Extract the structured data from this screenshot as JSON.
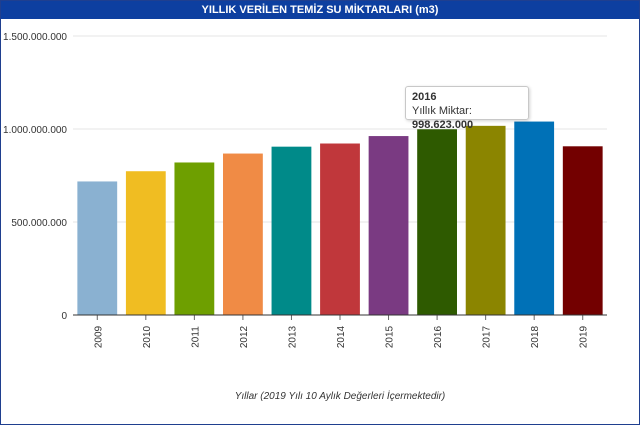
{
  "chart_data": {
    "type": "bar",
    "title": "YILLIK VERİLEN TEMİZ SU MİKTARLARI (m3)",
    "xlabel": "Yıllar (2019 Yılı 10 Aylık Değerleri İçermektedir)",
    "ylabel": "",
    "categories": [
      "2009",
      "2010",
      "2011",
      "2012",
      "2013",
      "2014",
      "2015",
      "2016",
      "2017",
      "2018",
      "2019"
    ],
    "values": [
      718000000,
      773000000,
      820000000,
      868000000,
      905000000,
      922000000,
      962000000,
      998623000,
      1017000000,
      1040000000,
      907000000
    ],
    "colors": [
      "#8ab1d1",
      "#f0bd22",
      "#6e9f00",
      "#f08b45",
      "#008a89",
      "#c0373b",
      "#7a3a82",
      "#2e5a00",
      "#8b8500",
      "#0071b7",
      "#730000"
    ],
    "ylim": [
      0,
      1500000000
    ],
    "yticks": [
      0,
      500000000,
      1000000000,
      1500000000
    ],
    "ytick_labels": [
      "0",
      "500.000.000",
      "1.000.000.000",
      "1.500.000.000"
    ],
    "grid": true,
    "legend": "none"
  },
  "tooltip": {
    "year": "2016",
    "label": "Yıllık Miktar: ",
    "value": "998.623.000"
  }
}
